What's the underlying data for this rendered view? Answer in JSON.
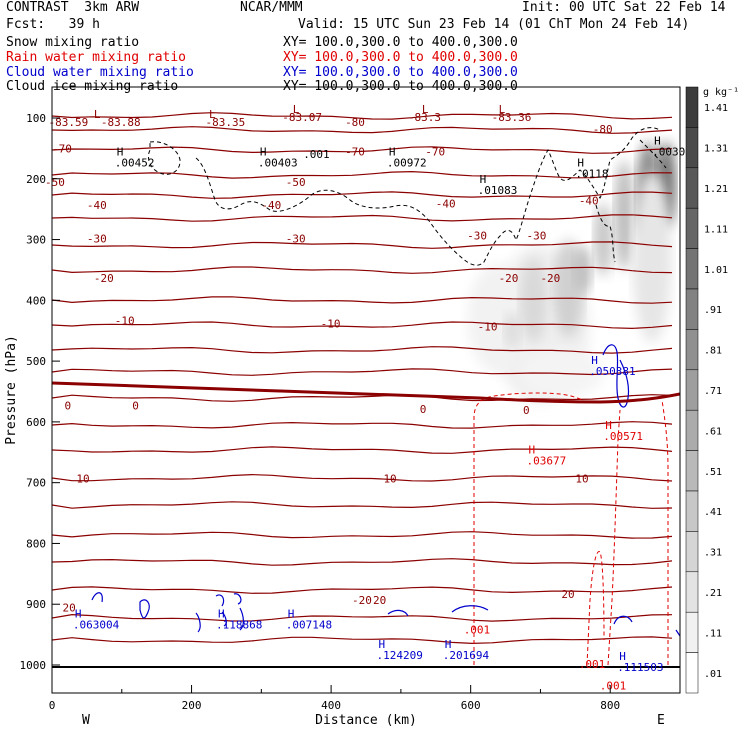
{
  "header": {
    "model": "CONTRAST  3km ARW",
    "org": "NCAR/MMM",
    "init": "Init: 00 UTC Sat 22 Feb 14",
    "fcst": "Fcst:   39 h",
    "valid": "Valid: 15 UTC Sun 23 Feb 14 (01 ChT Mon 24 Feb 14)",
    "fields": [
      {
        "name": "Snow mixing ratio",
        "xy": "XY= 100.0,300.0 to 400.0,300.0",
        "color": "#000000"
      },
      {
        "name": "Rain water mixing ratio",
        "xy": "XY= 100.0,300.0 to 400.0,300.0",
        "color": "#e00000"
      },
      {
        "name": "Cloud water mixing ratio",
        "xy": "XY= 100.0,300.0 to 400.0,300.0",
        "color": "#0000cc"
      },
      {
        "name": "Cloud ice mixing ratio",
        "xy": "XY= 100.0,300.0 to 400.0,300.0",
        "color": "#000000"
      }
    ]
  },
  "chart_data": {
    "type": "cross-section",
    "xlabel": "Distance (km)",
    "ylabel": "Pressure (hPa)",
    "xlim": [
      0,
      900
    ],
    "ylim": [
      1050,
      50
    ],
    "x_ticks": [
      0,
      200,
      400,
      600,
      800
    ],
    "y_ticks": [
      100,
      200,
      300,
      400,
      500,
      600,
      700,
      800,
      900,
      1000
    ],
    "endpoint_left": "W",
    "endpoint_right": "E",
    "colorbar": {
      "unit": "g kg⁻¹",
      "labels": [
        "1.41",
        "1.31",
        "1.21",
        "1.11",
        "1.01",
        ".91",
        ".81",
        ".71",
        ".61",
        ".51",
        ".41",
        ".31",
        ".21",
        ".11",
        ".01"
      ]
    },
    "temperature_contour_labels": [
      {
        "text": "-83.59",
        "x": -5,
        "p": 113
      },
      {
        "text": "-83.88",
        "x": 70,
        "p": 113
      },
      {
        "text": "-83.35",
        "x": 220,
        "p": 113
      },
      {
        "text": "-83.07",
        "x": 330,
        "p": 105
      },
      {
        "text": "-80",
        "x": 420,
        "p": 113
      },
      {
        "text": "-83.3",
        "x": 510,
        "p": 105
      },
      {
        "text": "-83.36",
        "x": 630,
        "p": 105
      },
      {
        "text": "-80",
        "x": 775,
        "p": 125
      },
      {
        "text": "-70",
        "x": 0,
        "p": 157
      },
      {
        "text": "-70",
        "x": 420,
        "p": 162
      },
      {
        "text": "-70",
        "x": 535,
        "p": 162
      },
      {
        "text": "-50",
        "x": -10,
        "p": 212
      },
      {
        "text": "-50",
        "x": 335,
        "p": 212
      },
      {
        "text": "-40",
        "x": 50,
        "p": 250
      },
      {
        "text": "-40",
        "x": 300,
        "p": 250
      },
      {
        "text": "-40",
        "x": 550,
        "p": 247
      },
      {
        "text": "-40",
        "x": 755,
        "p": 242
      },
      {
        "text": "-30",
        "x": 50,
        "p": 305
      },
      {
        "text": "-30",
        "x": 335,
        "p": 305
      },
      {
        "text": "-30",
        "x": 595,
        "p": 300
      },
      {
        "text": "-30",
        "x": 680,
        "p": 300
      },
      {
        "text": "-20",
        "x": 60,
        "p": 370
      },
      {
        "text": "-20",
        "x": 640,
        "p": 370
      },
      {
        "text": "-20",
        "x": 700,
        "p": 370
      },
      {
        "text": "-10",
        "x": 90,
        "p": 440
      },
      {
        "text": "-10",
        "x": 385,
        "p": 445
      },
      {
        "text": "-10",
        "x": 610,
        "p": 450
      },
      {
        "text": "0",
        "x": 18,
        "p": 580
      },
      {
        "text": "0",
        "x": 115,
        "p": 580
      },
      {
        "text": "0",
        "x": 527,
        "p": 585
      },
      {
        "text": "0",
        "x": 675,
        "p": 587
      },
      {
        "text": "10",
        "x": 35,
        "p": 700
      },
      {
        "text": "10",
        "x": 475,
        "p": 700
      },
      {
        "text": "10",
        "x": 750,
        "p": 700
      },
      {
        "text": "20",
        "x": 15,
        "p": 912
      },
      {
        "text": "-20",
        "x": 430,
        "p": 900
      },
      {
        "text": "20",
        "x": 460,
        "p": 900
      },
      {
        "text": "20",
        "x": 730,
        "p": 890
      }
    ],
    "low_markers": [
      {
        "text": "L",
        "x": 60,
        "p": 100
      },
      {
        "text": "L",
        "x": 225,
        "p": 100
      },
      {
        "text": "L",
        "x": 345,
        "p": 92
      },
      {
        "text": "L",
        "x": 530,
        "p": 92
      },
      {
        "text": "L",
        "x": 640,
        "p": 92
      }
    ],
    "max_labels": [
      {
        "text": ".00452",
        "x": 90,
        "p": 180,
        "color": "#000000"
      },
      {
        "text": ".00403",
        "x": 295,
        "p": 180,
        "color": "#000000"
      },
      {
        "text": ".00972",
        "x": 480,
        "p": 180,
        "color": "#000000"
      },
      {
        "text": ".01083",
        "x": 610,
        "p": 225,
        "color": "#000000"
      },
      {
        "text": ".0118",
        "x": 750,
        "p": 198,
        "color": "#000000"
      },
      {
        "text": ".0030",
        "x": 860,
        "p": 162,
        "color": "#000000"
      },
      {
        "text": ".050381",
        "x": 770,
        "p": 523,
        "color": "#0000cc"
      },
      {
        "text": ".00571",
        "x": 790,
        "p": 630,
        "color": "#e00000"
      },
      {
        "text": ".03677",
        "x": 680,
        "p": 670,
        "color": "#e00000"
      },
      {
        "text": ".063004",
        "x": 30,
        "p": 940,
        "color": "#0000cc"
      },
      {
        "text": ".118868",
        "x": 235,
        "p": 940,
        "color": "#0000cc"
      },
      {
        "text": ".007148",
        "x": 335,
        "p": 940,
        "color": "#0000cc"
      },
      {
        "text": ".124209",
        "x": 465,
        "p": 990,
        "color": "#0000cc"
      },
      {
        "text": ".201694",
        "x": 560,
        "p": 990,
        "color": "#0000cc"
      },
      {
        "text": ".111503",
        "x": 810,
        "p": 1010,
        "color": "#0000cc"
      },
      {
        "text": ".001",
        "x": 590,
        "p": 948,
        "color": "#e00000"
      },
      {
        "text": ".001",
        "x": 755,
        "p": 1005,
        "color": "#e00000"
      },
      {
        "text": ".001",
        "x": 785,
        "p": 1040,
        "color": "#e00000"
      },
      {
        "text": ".001",
        "x": 360,
        "p": 166,
        "color": "#000000"
      }
    ]
  }
}
